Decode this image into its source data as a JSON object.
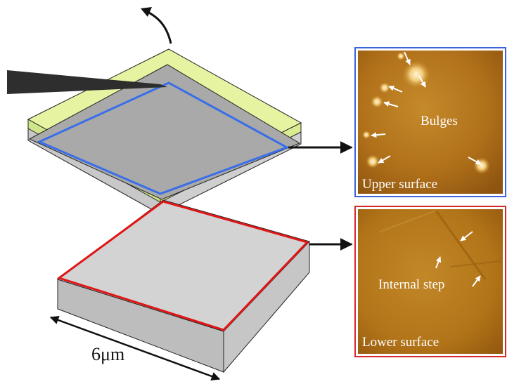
{
  "upper_panel": {
    "caption": "Upper surface",
    "annotation": "Bulges",
    "frame_color": "#3a64d8"
  },
  "lower_panel": {
    "caption": "Lower surface",
    "annotation": "Internal step",
    "frame_color": "#d42a2a"
  },
  "dimension_label": "6μm",
  "colors": {
    "blue_outline": "#3a6ee8",
    "red_outline": "#e01616",
    "top_film": "#e6f3a0",
    "flake_face": "#a9a9a9",
    "block_top": "#d3d3d3",
    "block_side": "#bdbdbd",
    "probe": "#2e2e2e",
    "afm_base": "#b8781e"
  },
  "icons": {
    "rotation": "curved-arrow-icon",
    "probe": "afm-tip-icon"
  }
}
